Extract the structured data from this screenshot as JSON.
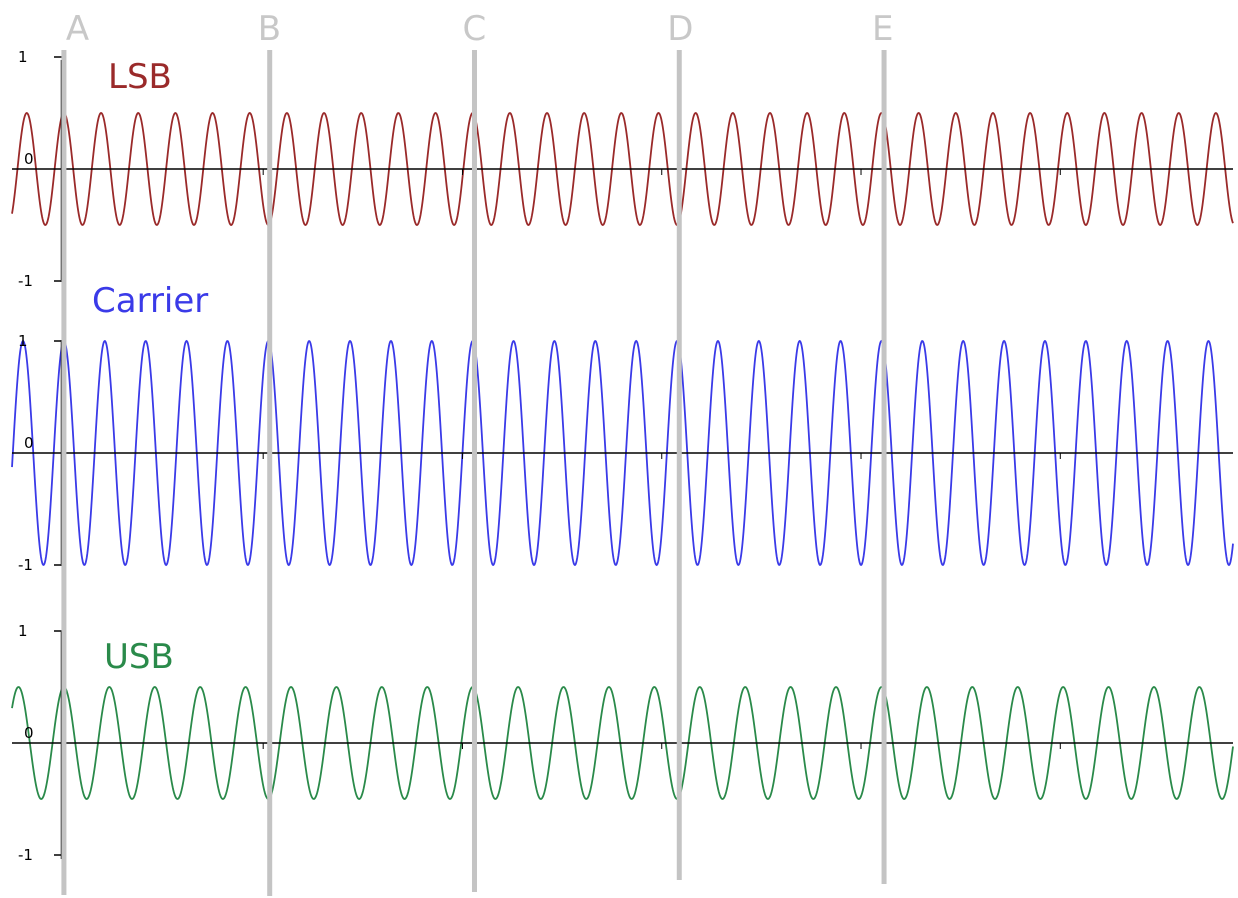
{
  "chart_data": {
    "type": "line",
    "markers": [
      {
        "label": "A",
        "x": 0
      },
      {
        "label": "B",
        "x": 5
      },
      {
        "label": "C",
        "x": 10
      },
      {
        "label": "D",
        "x": 15
      },
      {
        "label": "E",
        "x": 20
      }
    ],
    "x_range": [
      -1.27,
      28.6
    ],
    "panels": [
      {
        "title": "LSB",
        "color": "#9a2a2a",
        "ytick_labels": [
          "1",
          "0",
          "-1"
        ],
        "ylim": [
          -1,
          1
        ],
        "amplitude": 0.5,
        "cycles_per_marker_interval": 5.5
      },
      {
        "title": "Carrier",
        "color": "#3a3ae8",
        "ytick_labels": [
          "1",
          "0",
          "-1"
        ],
        "ylim": [
          -1,
          1
        ],
        "amplitude": 1,
        "cycles_per_marker_interval": 5
      },
      {
        "title": "USB",
        "color": "#2a8a4a",
        "ytick_labels": [
          "1",
          "0",
          "-1"
        ],
        "ylim": [
          -1,
          1
        ],
        "amplitude": 0.5,
        "cycles_per_marker_interval": 4.5
      }
    ]
  }
}
